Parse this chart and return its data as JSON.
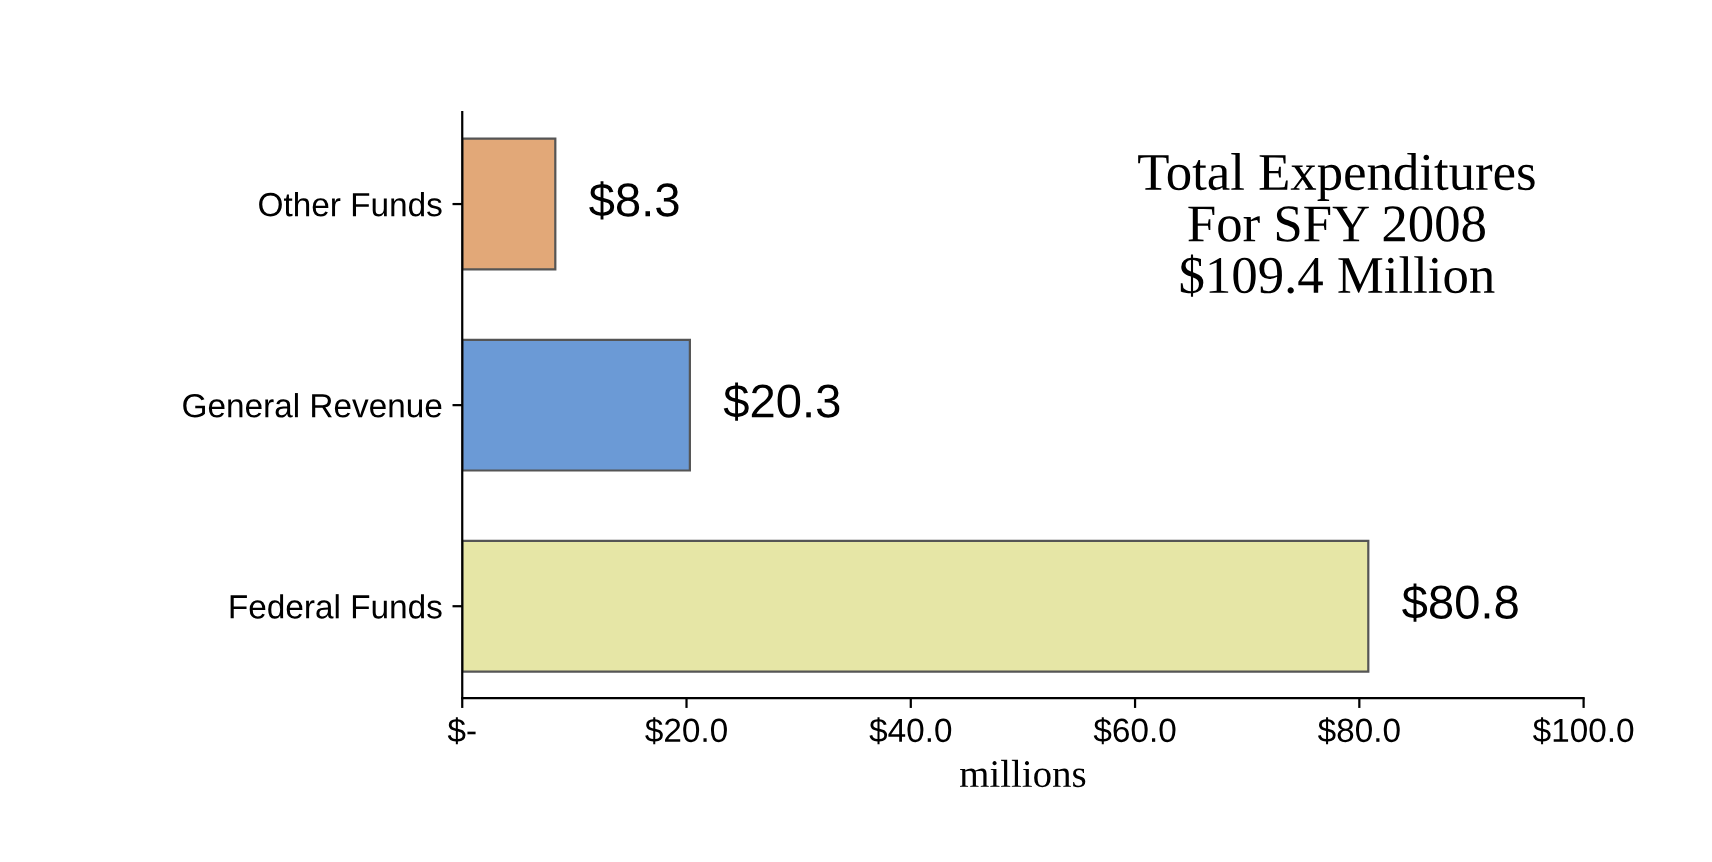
{
  "chart_data": {
    "type": "bar",
    "orientation": "horizontal",
    "title": "Total Expenditures\nFor SFY 2008\n$109.4 Million",
    "xlabel": "millions",
    "categories": [
      "Other Funds",
      "General Revenue",
      "Federal Funds"
    ],
    "values": [
      8.3,
      20.3,
      80.8
    ],
    "value_labels": [
      "$8.3",
      "$20.3",
      "$80.8"
    ],
    "colors": [
      "#e2a878",
      "#6b9ad6",
      "#e6e6a6"
    ],
    "xlim": [
      0,
      100
    ],
    "xticks": [
      {
        "value": 0,
        "label": "$-"
      },
      {
        "value": 20,
        "label": "$20.0"
      },
      {
        "value": 40,
        "label": "$40.0"
      },
      {
        "value": 60,
        "label": "$60.0"
      },
      {
        "value": 80,
        "label": "$80.0"
      },
      {
        "value": 100,
        "label": "$100.0"
      }
    ],
    "grid": false,
    "legend": false
  }
}
